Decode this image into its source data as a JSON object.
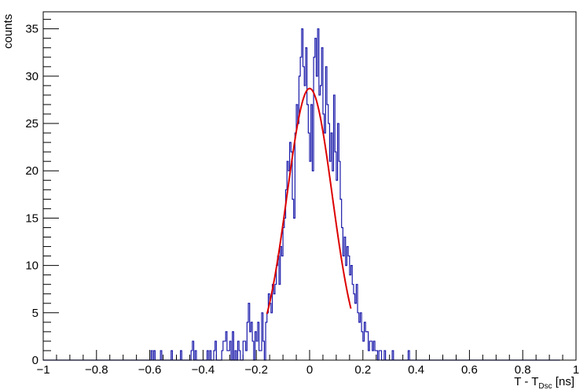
{
  "chart_data": {
    "type": "histogram",
    "xlabel_main": "T - T",
    "xlabel_subscript": "Dsc",
    "xlabel_unit": " [ns]",
    "ylabel": "counts",
    "xlim": [
      -1,
      1
    ],
    "ylim": [
      0,
      36.8
    ],
    "grid": false,
    "legend": "none",
    "x_ticks": [
      {
        "value": -1,
        "label": "−1"
      },
      {
        "value": -0.8,
        "label": "−0.8"
      },
      {
        "value": -0.6,
        "label": "−0.6"
      },
      {
        "value": -0.4,
        "label": "−0.4"
      },
      {
        "value": -0.2,
        "label": "−0.2"
      },
      {
        "value": 0,
        "label": "0"
      },
      {
        "value": 0.2,
        "label": "0.2"
      },
      {
        "value": 0.4,
        "label": "0.4"
      },
      {
        "value": 0.6,
        "label": "0.6"
      },
      {
        "value": 0.8,
        "label": "0.8"
      },
      {
        "value": 1,
        "label": "1"
      }
    ],
    "y_ticks": [
      {
        "value": 0,
        "label": "0"
      },
      {
        "value": 5,
        "label": "5"
      },
      {
        "value": 10,
        "label": "10"
      },
      {
        "value": 15,
        "label": "15"
      },
      {
        "value": 20,
        "label": "20"
      },
      {
        "value": 25,
        "label": "25"
      },
      {
        "value": 30,
        "label": "30"
      },
      {
        "value": 35,
        "label": "35"
      }
    ],
    "histogram": {
      "bin_low": -1.0,
      "bin_width": 0.005,
      "line_color": "#1a1aaa",
      "counts": [
        0,
        0,
        0,
        0,
        0,
        0,
        0,
        0,
        0,
        0,
        0,
        0,
        0,
        0,
        0,
        0,
        0,
        0,
        0,
        0,
        0,
        0,
        0,
        0,
        0,
        0,
        0,
        0,
        0,
        0,
        0,
        0,
        0,
        0,
        0,
        0,
        0,
        0,
        0,
        0,
        0,
        0,
        0,
        0,
        0,
        0,
        0,
        0,
        0,
        0,
        0,
        0,
        0,
        0,
        0,
        0,
        0,
        0,
        0,
        0,
        0,
        0,
        0,
        0,
        0,
        0,
        0,
        0,
        0,
        0,
        0,
        0,
        0,
        0,
        0,
        0,
        0,
        0,
        0,
        0,
        0,
        1,
        0,
        1,
        0,
        0,
        0,
        0,
        1,
        0,
        0,
        0,
        0,
        0,
        0,
        0,
        1,
        0,
        0,
        0,
        0,
        0,
        0,
        1,
        0,
        0,
        0,
        0,
        0,
        0,
        0,
        1,
        2,
        0,
        1,
        0,
        0,
        0,
        0,
        0,
        0,
        0,
        0,
        1,
        0,
        1,
        0,
        0,
        1,
        2,
        0,
        0,
        0,
        0,
        1,
        2,
        2,
        3,
        1,
        1,
        2,
        0,
        3,
        0,
        1,
        0,
        2,
        1,
        0,
        0,
        2,
        2,
        1,
        4,
        6,
        3,
        4,
        2,
        0,
        3,
        2,
        4,
        1,
        1,
        5,
        2,
        0,
        4,
        5,
        7,
        6,
        5,
        8,
        7,
        8,
        10,
        11,
        8,
        12,
        11,
        14,
        15,
        18,
        21,
        20,
        23,
        22,
        17,
        15,
        24,
        27,
        25,
        30,
        32,
        35,
        31,
        29,
        33,
        27,
        24,
        21,
        27,
        20,
        32,
        34,
        30,
        35,
        28,
        29,
        33,
        26,
        24,
        31,
        27,
        25,
        21,
        24,
        20,
        28,
        22,
        19,
        25,
        21,
        17,
        14,
        11,
        13,
        10,
        12,
        11,
        9,
        10,
        8,
        7,
        6,
        8,
        5,
        4,
        5,
        3,
        2,
        4,
        3,
        3,
        1,
        2,
        2,
        1,
        2,
        1,
        1,
        0,
        1,
        1,
        0,
        0,
        1,
        0,
        0,
        0,
        0,
        0,
        1,
        0,
        0,
        0,
        0,
        0,
        0,
        0,
        0,
        0,
        0,
        0,
        1,
        0,
        0,
        0,
        0,
        0,
        0,
        0,
        0,
        0,
        0,
        0,
        0,
        0,
        0,
        0,
        0,
        0,
        0,
        0,
        0,
        0,
        0,
        0,
        0,
        0,
        0,
        0,
        0,
        0,
        0,
        0,
        0,
        0,
        0,
        0,
        0,
        0,
        0,
        0,
        0,
        0,
        0,
        0,
        0,
        0,
        0,
        0,
        0,
        0,
        0,
        0,
        0,
        0,
        0,
        0,
        0,
        0,
        0,
        0,
        0,
        0,
        0,
        0,
        0,
        0,
        0,
        0,
        0,
        0,
        0,
        0,
        0,
        0,
        0,
        0,
        0,
        0,
        0,
        0,
        0,
        0,
        0,
        0,
        0,
        0,
        0,
        0,
        0,
        0,
        0,
        0,
        0,
        0,
        0,
        0,
        0,
        0,
        0,
        0,
        0,
        0,
        0,
        0,
        0,
        0,
        0,
        0,
        0,
        0,
        0,
        0,
        0,
        0
      ]
    },
    "fit": {
      "function": "gaussian",
      "amplitude": 28.7,
      "mean": 0.0,
      "sigma": 0.085,
      "x_range": [
        -0.16,
        0.155
      ],
      "line_color": "#dd0000"
    }
  }
}
